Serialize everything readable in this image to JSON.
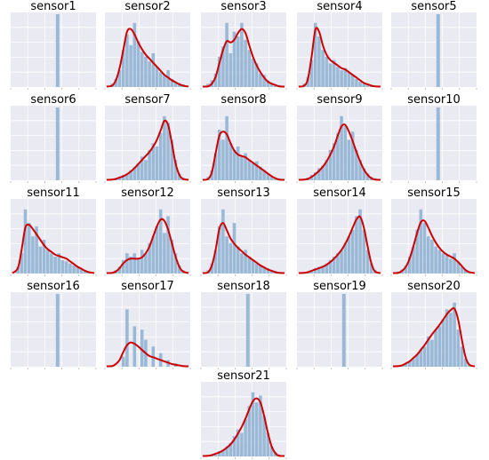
{
  "colors": {
    "panel_bg": "#eaeaf2",
    "grid": "#ffffff",
    "bar": "#9ab9d6",
    "kde": "#cc0000",
    "tick": "#999999",
    "title": "#000000"
  },
  "chart_data": [
    {
      "type": "bar",
      "title": "sensor1",
      "constant": true,
      "bars": []
    },
    {
      "type": "bar",
      "title": "sensor2",
      "constant": false,
      "bars": [
        0.05,
        0.12,
        0.25,
        0.55,
        0.78,
        0.62,
        0.95,
        0.68,
        0.52,
        0.45,
        0.38,
        0.5,
        0.3,
        0.22,
        0.18,
        0.25,
        0.12,
        0.08,
        0.06,
        0.04
      ],
      "kde": [
        0.02,
        0.1,
        0.28,
        0.55,
        0.82,
        0.86,
        0.78,
        0.66,
        0.56,
        0.48,
        0.42,
        0.36,
        0.3,
        0.24,
        0.18,
        0.14,
        0.1,
        0.07,
        0.04,
        0.02
      ]
    },
    {
      "type": "bar",
      "title": "sensor3",
      "constant": false,
      "bars": [
        0.05,
        0.1,
        0.2,
        0.45,
        0.6,
        0.95,
        0.5,
        0.82,
        0.75,
        0.95,
        0.7,
        0.55,
        0.42,
        0.35,
        0.2,
        0.18,
        0.1,
        0.06,
        0.04,
        0.03
      ],
      "kde": [
        0.01,
        0.05,
        0.15,
        0.35,
        0.55,
        0.68,
        0.66,
        0.7,
        0.8,
        0.86,
        0.8,
        0.62,
        0.45,
        0.32,
        0.22,
        0.14,
        0.08,
        0.05,
        0.03,
        0.01
      ]
    },
    {
      "type": "bar",
      "title": "sensor4",
      "constant": false,
      "bars": [
        0.05,
        0.15,
        0.4,
        0.95,
        0.75,
        0.55,
        0.45,
        0.35,
        0.4,
        0.3,
        0.25,
        0.28,
        0.22,
        0.18,
        0.12,
        0.08,
        0.05,
        0.04,
        0.03,
        0.02
      ],
      "kde": [
        0.02,
        0.12,
        0.45,
        0.85,
        0.82,
        0.62,
        0.48,
        0.4,
        0.36,
        0.32,
        0.28,
        0.26,
        0.22,
        0.18,
        0.14,
        0.1,
        0.06,
        0.04,
        0.02,
        0.01
      ]
    },
    {
      "type": "bar",
      "title": "sensor5",
      "constant": true,
      "bars": []
    },
    {
      "type": "bar",
      "title": "sensor6",
      "constant": true,
      "bars": []
    },
    {
      "type": "bar",
      "title": "sensor7",
      "constant": false,
      "bars": [
        0.02,
        0.03,
        0.05,
        0.08,
        0.1,
        0.15,
        0.2,
        0.25,
        0.35,
        0.3,
        0.45,
        0.55,
        0.5,
        0.7,
        0.95,
        0.85,
        0.6,
        0.3,
        0.1,
        0.04
      ],
      "kde": [
        0.01,
        0.02,
        0.04,
        0.06,
        0.09,
        0.13,
        0.18,
        0.24,
        0.3,
        0.36,
        0.42,
        0.5,
        0.6,
        0.74,
        0.88,
        0.82,
        0.55,
        0.25,
        0.08,
        0.02
      ]
    },
    {
      "type": "bar",
      "title": "sensor8",
      "constant": false,
      "bars": [
        0.05,
        0.15,
        0.4,
        0.75,
        0.6,
        0.95,
        0.55,
        0.45,
        0.5,
        0.35,
        0.4,
        0.3,
        0.25,
        0.28,
        0.2,
        0.15,
        0.1,
        0.06,
        0.04,
        0.03
      ],
      "kde": [
        0.02,
        0.12,
        0.4,
        0.66,
        0.72,
        0.68,
        0.55,
        0.44,
        0.38,
        0.36,
        0.34,
        0.3,
        0.26,
        0.22,
        0.18,
        0.14,
        0.1,
        0.06,
        0.03,
        0.01
      ]
    },
    {
      "type": "bar",
      "title": "sensor9",
      "constant": false,
      "bars": [
        0.02,
        0.04,
        0.08,
        0.12,
        0.18,
        0.22,
        0.3,
        0.45,
        0.55,
        0.7,
        0.95,
        0.8,
        0.6,
        0.72,
        0.45,
        0.3,
        0.18,
        0.1,
        0.05,
        0.03
      ],
      "kde": [
        0.01,
        0.02,
        0.05,
        0.09,
        0.14,
        0.2,
        0.28,
        0.38,
        0.5,
        0.66,
        0.8,
        0.82,
        0.72,
        0.58,
        0.42,
        0.28,
        0.16,
        0.08,
        0.03,
        0.01
      ]
    },
    {
      "type": "bar",
      "title": "sensor10",
      "constant": true,
      "bars": []
    },
    {
      "type": "bar",
      "title": "sensor11",
      "constant": false,
      "bars": [
        0.1,
        0.3,
        0.95,
        0.75,
        0.55,
        0.7,
        0.4,
        0.5,
        0.35,
        0.3,
        0.25,
        0.3,
        0.2,
        0.18,
        0.15,
        0.12,
        0.1,
        0.08,
        0.05,
        0.03
      ],
      "kde": [
        0.08,
        0.35,
        0.68,
        0.72,
        0.66,
        0.58,
        0.5,
        0.42,
        0.36,
        0.32,
        0.28,
        0.26,
        0.24,
        0.22,
        0.18,
        0.14,
        0.1,
        0.07,
        0.04,
        0.02
      ]
    },
    {
      "type": "bar",
      "title": "sensor12",
      "constant": false,
      "bars": [
        0.02,
        0.05,
        0.1,
        0.2,
        0.3,
        0.25,
        0.3,
        0.22,
        0.35,
        0.3,
        0.45,
        0.55,
        0.7,
        0.95,
        0.6,
        0.85,
        0.5,
        0.3,
        0.12,
        0.05
      ],
      "kde": [
        0.01,
        0.03,
        0.08,
        0.15,
        0.2,
        0.22,
        0.22,
        0.22,
        0.24,
        0.3,
        0.4,
        0.55,
        0.7,
        0.8,
        0.78,
        0.65,
        0.45,
        0.25,
        0.1,
        0.03
      ]
    },
    {
      "type": "bar",
      "title": "sensor13",
      "constant": false,
      "bars": [
        0.05,
        0.15,
        0.35,
        0.7,
        0.95,
        0.55,
        0.45,
        0.75,
        0.4,
        0.3,
        0.35,
        0.25,
        0.2,
        0.15,
        0.12,
        0.1,
        0.08,
        0.05,
        0.04,
        0.02
      ],
      "kde": [
        0.02,
        0.12,
        0.35,
        0.66,
        0.75,
        0.64,
        0.52,
        0.44,
        0.38,
        0.33,
        0.28,
        0.24,
        0.2,
        0.16,
        0.12,
        0.09,
        0.06,
        0.04,
        0.02,
        0.01
      ]
    },
    {
      "type": "bar",
      "title": "sensor14",
      "constant": false,
      "bars": [
        0.02,
        0.03,
        0.05,
        0.08,
        0.1,
        0.12,
        0.15,
        0.2,
        0.25,
        0.3,
        0.35,
        0.45,
        0.55,
        0.65,
        0.85,
        0.95,
        0.65,
        0.35,
        0.15,
        0.05
      ],
      "kde": [
        0.01,
        0.02,
        0.04,
        0.06,
        0.08,
        0.1,
        0.13,
        0.17,
        0.22,
        0.28,
        0.35,
        0.44,
        0.55,
        0.68,
        0.8,
        0.84,
        0.68,
        0.4,
        0.15,
        0.03
      ]
    },
    {
      "type": "bar",
      "title": "sensor15",
      "constant": false,
      "bars": [
        0.03,
        0.06,
        0.12,
        0.25,
        0.4,
        0.65,
        0.95,
        0.75,
        0.55,
        0.5,
        0.4,
        0.35,
        0.3,
        0.28,
        0.22,
        0.3,
        0.18,
        0.1,
        0.05,
        0.03
      ],
      "kde": [
        0.01,
        0.04,
        0.1,
        0.22,
        0.4,
        0.6,
        0.76,
        0.78,
        0.68,
        0.56,
        0.46,
        0.38,
        0.32,
        0.28,
        0.25,
        0.22,
        0.17,
        0.11,
        0.05,
        0.02
      ]
    },
    {
      "type": "bar",
      "title": "sensor16",
      "constant": true,
      "bars": []
    },
    {
      "type": "bar",
      "title": "sensor17",
      "constant": false,
      "bars": [
        0.0,
        0.0,
        0.0,
        0.15,
        0.85,
        0.0,
        0.6,
        0.0,
        0.55,
        0.4,
        0.0,
        0.3,
        0.0,
        0.2,
        0.0,
        0.1,
        0.0,
        0.05,
        0.0,
        0.0
      ],
      "kde": [
        0.01,
        0.04,
        0.1,
        0.22,
        0.32,
        0.36,
        0.34,
        0.3,
        0.25,
        0.2,
        0.16,
        0.14,
        0.12,
        0.1,
        0.08,
        0.06,
        0.04,
        0.03,
        0.02,
        0.01
      ]
    },
    {
      "type": "bar",
      "title": "sensor18",
      "constant": true,
      "bars": []
    },
    {
      "type": "bar",
      "title": "sensor19",
      "constant": true,
      "bars": []
    },
    {
      "type": "bar",
      "title": "sensor20",
      "constant": false,
      "bars": [
        0.02,
        0.03,
        0.05,
        0.08,
        0.12,
        0.18,
        0.25,
        0.3,
        0.45,
        0.4,
        0.55,
        0.6,
        0.7,
        0.85,
        0.8,
        0.95,
        0.55,
        0.3,
        0.12,
        0.04
      ],
      "kde": [
        0.01,
        0.02,
        0.05,
        0.08,
        0.13,
        0.18,
        0.25,
        0.32,
        0.4,
        0.48,
        0.55,
        0.62,
        0.7,
        0.78,
        0.84,
        0.86,
        0.7,
        0.4,
        0.14,
        0.03
      ]
    },
    {
      "type": "bar",
      "title": "sensor21",
      "constant": false,
      "bars": [
        0.02,
        0.03,
        0.05,
        0.08,
        0.1,
        0.15,
        0.2,
        0.3,
        0.4,
        0.35,
        0.55,
        0.75,
        0.95,
        0.8,
        0.9,
        0.6,
        0.35,
        0.15,
        0.06,
        0.03
      ],
      "kde": [
        0.01,
        0.02,
        0.04,
        0.06,
        0.09,
        0.13,
        0.18,
        0.25,
        0.34,
        0.44,
        0.56,
        0.7,
        0.82,
        0.86,
        0.8,
        0.6,
        0.35,
        0.15,
        0.05,
        0.01
      ]
    }
  ]
}
